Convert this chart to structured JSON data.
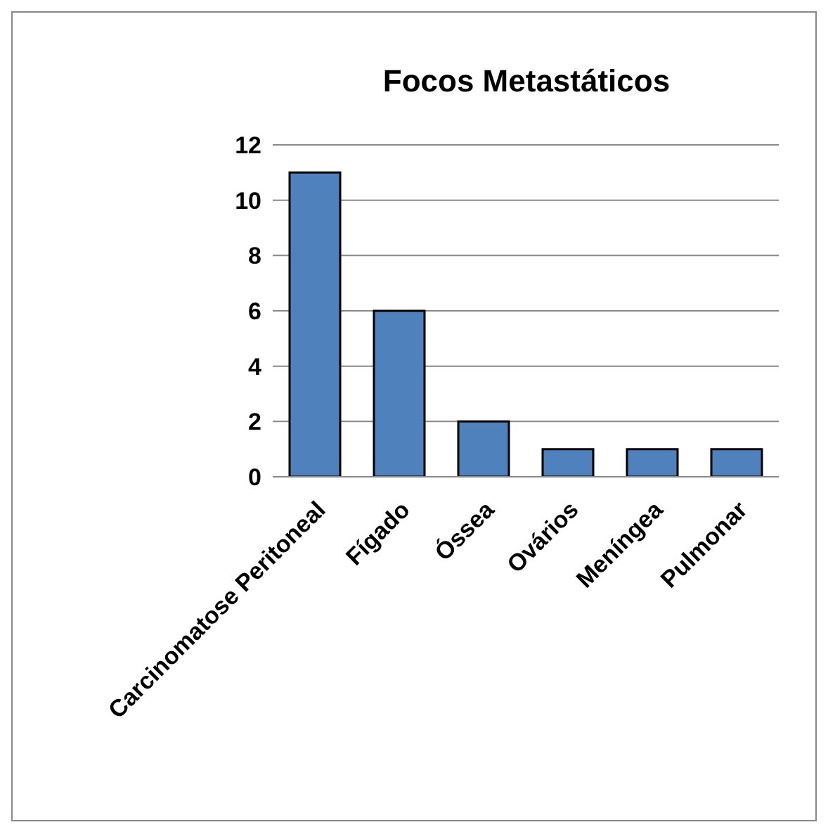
{
  "chart_data": {
    "type": "bar",
    "title": "Focos Metastáticos",
    "categories": [
      "Carcinomatose Peritoneal",
      "Fígado",
      "Óssea",
      "Ovários",
      "Meníngea",
      "Pulmonar"
    ],
    "values": [
      11,
      6,
      2,
      1,
      1,
      1
    ],
    "color": "#4f81bd",
    "ylim": [
      0,
      12
    ],
    "yticks": [
      0,
      2,
      4,
      6,
      8,
      10,
      12
    ],
    "grid": "y",
    "legend": false
  }
}
